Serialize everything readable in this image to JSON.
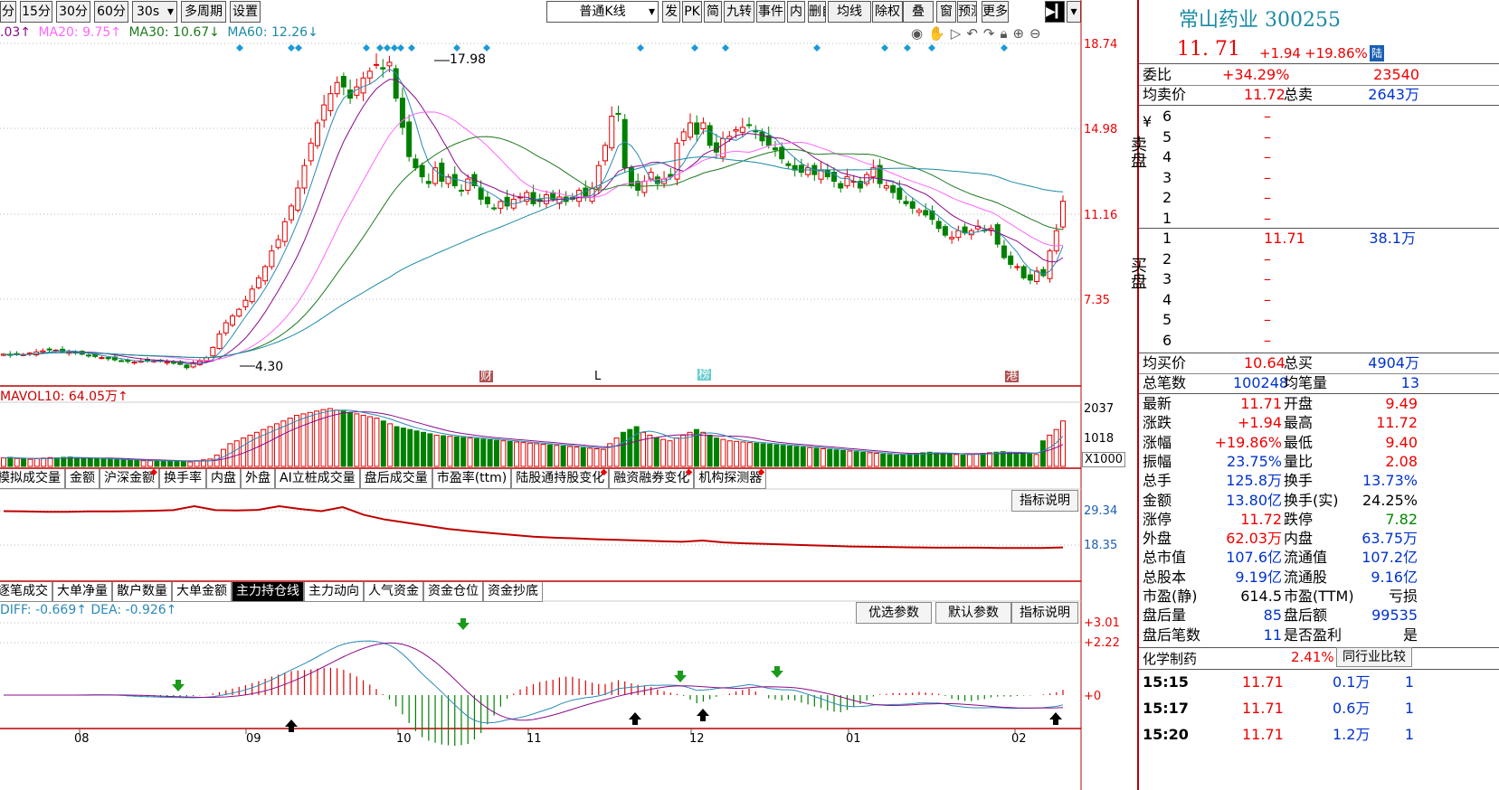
{
  "colors": {
    "up": "#e00000",
    "down": "#008000",
    "ma5": "#2a8ab8",
    "ma10": "#8b0a8b",
    "ma20": "#ff66ff",
    "ma30": "#1f7a1f",
    "ma60": "#1a8aa5",
    "line_red": "#c00000"
  },
  "toolbar": {
    "buttons": [
      "分",
      "15分",
      "30分",
      "60分",
      "30s",
      "多周期",
      "设置"
    ],
    "kline_select": "普通K线",
    "right_buttons": [
      "发",
      "PK",
      "简",
      "九转",
      "事件",
      "内",
      "删自选",
      "均线",
      "除权",
      "叠",
      "窗",
      "预测",
      "更多"
    ]
  },
  "ma_legend": {
    "ma10": ".03↑",
    "ma20": "MA20: 9.75↑",
    "ma30": "MA30: 10.67↓",
    "ma60": "MA60: 12.26↓"
  },
  "chart_tools": [
    "eye-icon",
    "hand-icon",
    "play-icon",
    "undo-icon",
    "redo-icon",
    "lock-icon",
    "zoom-in-icon",
    "zoom-out-icon"
  ],
  "chart_data": [
    {
      "type": "candlestick",
      "title": "",
      "price_axis": [
        "18.74",
        "14.98",
        "11.16",
        "7.35"
      ],
      "high_label": "17.98",
      "low_label": "4.30",
      "event_markers": [
        "财",
        "L",
        "榜",
        "港"
      ],
      "x_labels": [
        "08",
        "09",
        "10",
        "11",
        "12",
        "01",
        "02"
      ],
      "closes": [
        4.9,
        4.85,
        4.9,
        4.88,
        4.95,
        5,
        5.05,
        5.1,
        5.08,
        5.02,
        5.0,
        4.95,
        4.9,
        4.85,
        4.8,
        4.75,
        4.7,
        4.65,
        4.6,
        4.58,
        4.55,
        4.6,
        4.62,
        4.6,
        4.58,
        4.55,
        4.5,
        4.45,
        4.3,
        4.5,
        4.6,
        4.75,
        5.2,
        5.8,
        6.3,
        6.6,
        6.9,
        7.3,
        7.8,
        8.3,
        8.8,
        9.5,
        10,
        10.8,
        11.5,
        12.3,
        13.3,
        14.3,
        15.2,
        16,
        16.5,
        17,
        16.8,
        16.3,
        16.8,
        17.2,
        17.5,
        17.8,
        17.6,
        17.9,
        16.3,
        15,
        13.7,
        13.2,
        12.8,
        12.5,
        13.2,
        12.6,
        12.8,
        12.4,
        12.2,
        12.7,
        12.4,
        11.8,
        11.6,
        11.4,
        11.7,
        11.5,
        11.8,
        11.9,
        12.1,
        11.6,
        11.7,
        12,
        11.8,
        11.9,
        11.7,
        11.8,
        12.2,
        11.9,
        12.3,
        13.3,
        14.2,
        15.5,
        15.6,
        13.2,
        12.4,
        12.2,
        12.6,
        13,
        12.5,
        12.7,
        12.8,
        14.3,
        14.8,
        15.2,
        14.7,
        15.2,
        14.2,
        13.9,
        14.5,
        14.6,
        14.9,
        15,
        15.1,
        14.8,
        14.4,
        14.2,
        14,
        13.6,
        13.3,
        13.1,
        13,
        13.2,
        12.9,
        13.1,
        12.8,
        12.6,
        12.3,
        12.8,
        12.6,
        12.3,
        12.9,
        13.2,
        12.5,
        12.4,
        12.1,
        11.8,
        11.6,
        11.4,
        11.3,
        11.1,
        10.9,
        10.5,
        10.2,
        10.1,
        10.4,
        10.3,
        10.4,
        10.6,
        10.4,
        10.5,
        9.8,
        9.2,
        8.9,
        8.8,
        8.3,
        8.2,
        8.6,
        8.4,
        9.5,
        10.4,
        11.71
      ]
    },
    {
      "type": "bar",
      "title": "MAVOL10: 64.05万↑",
      "axis": [
        "2037",
        "1018",
        "X1000"
      ],
      "values": [
        300,
        320,
        280,
        260,
        250,
        270,
        290,
        310,
        300,
        320,
        330,
        310,
        290,
        280,
        270,
        260,
        250,
        240,
        230,
        220,
        210,
        200,
        200,
        210,
        200,
        190,
        180,
        170,
        160,
        200,
        230,
        260,
        400,
        600,
        800,
        900,
        1000,
        1100,
        1200,
        1300,
        1400,
        1500,
        1600,
        1700,
        1800,
        1850,
        1900,
        1950,
        2000,
        2037,
        1980,
        1950,
        1900,
        1850,
        1800,
        1750,
        1700,
        1600,
        1500,
        1400,
        1350,
        1300,
        1250,
        1200,
        1150,
        1100,
        1080,
        1060,
        1040,
        1020,
        1000,
        980,
        960,
        940,
        920,
        900,
        880,
        860,
        840,
        820,
        800,
        780,
        760,
        740,
        720,
        700,
        680,
        660,
        640,
        620,
        600,
        800,
        1000,
        1200,
        1300,
        1400,
        1200,
        1100,
        1000,
        950,
        900,
        1000,
        1100,
        1200,
        1300,
        1200,
        1100,
        1000,
        950,
        900,
        880,
        860,
        840,
        820,
        800,
        780,
        760,
        740,
        720,
        700,
        680,
        660,
        640,
        620,
        600,
        580,
        560,
        540,
        520,
        500,
        480,
        460,
        440,
        420,
        400,
        420,
        440,
        460,
        480,
        500,
        480,
        460,
        440,
        420,
        400,
        420,
        440,
        460,
        480,
        500,
        520,
        500,
        480,
        460,
        440,
        420,
        900,
        1100,
        1300,
        1600
      ]
    },
    {
      "type": "line",
      "title": "",
      "axis": [
        "29.34",
        "18.35"
      ],
      "values": [
        29.2,
        29.1,
        29.0,
        29.0,
        29.1,
        29.1,
        29.2,
        29.3,
        29.5,
        30.8,
        29.5,
        29.4,
        29.6,
        30.8,
        29.9,
        29.2,
        30.5,
        28.0,
        26.5,
        25.5,
        24.5,
        23.5,
        22.8,
        22.2,
        21.6,
        21.0,
        20.7,
        20.5,
        20.2,
        20.0,
        19.8,
        19.6,
        19.4,
        19.8,
        19.2,
        18.9,
        18.7,
        18.5,
        18.3,
        18.1,
        17.9,
        17.8,
        17.7,
        17.6,
        17.5,
        17.5,
        17.5,
        17.4,
        17.4,
        17.4,
        17.6
      ]
    },
    {
      "type": "line",
      "title": "DIFF: -0.669↑ DEA: -0.926↑",
      "axis": [
        "+3.01",
        "+2.22",
        "+0"
      ]
    }
  ],
  "indicator_tabs": [
    "模拟成交量",
    "金额",
    "沪深金额",
    "换手率",
    "内盘",
    "外盘",
    "AI立桩成交量",
    "盘后成交量",
    "市盈率(ttm)",
    "陆股通持股变化",
    "融资融券变化",
    "机构探测器"
  ],
  "fund_tabs": [
    "逐笔成交",
    "大单净量",
    "散户数量",
    "大单金额",
    "主力持仓线",
    "主力动向",
    "人气资金",
    "资金仓位",
    "资金抄底"
  ],
  "buttons": {
    "explain": "指标说明",
    "opt": "优选参数",
    "def": "默认参数"
  },
  "quote": {
    "name": "常山药业 300255",
    "price": "11. 71",
    "change": "+1.94",
    "pct": "+19.86%",
    "badge": "陆",
    "webi": [
      "委比",
      "+34.29%",
      "23540"
    ],
    "avg_sell": [
      "均卖价",
      "11.72",
      "总卖",
      "2643万"
    ],
    "ask_side": "卖盘",
    "bid_side": "买盘",
    "asks": [
      [
        "6",
        "–",
        ""
      ],
      [
        "5",
        "–",
        ""
      ],
      [
        "4",
        "–",
        ""
      ],
      [
        "3",
        "–",
        ""
      ],
      [
        "2",
        "–",
        ""
      ],
      [
        "1",
        "–",
        ""
      ]
    ],
    "bids": [
      [
        "1",
        "11.71",
        "38.1万"
      ],
      [
        "2",
        "–",
        ""
      ],
      [
        "3",
        "–",
        ""
      ],
      [
        "4",
        "–",
        ""
      ],
      [
        "5",
        "–",
        ""
      ],
      [
        "6",
        "–",
        ""
      ]
    ],
    "avg_buy": [
      "均买价",
      "10.64",
      "总买",
      "4904万"
    ],
    "total_deals": [
      "总笔数",
      "100248",
      "均笔量",
      "13"
    ],
    "stats": [
      [
        "最新",
        "11.71",
        "开盘",
        "9.49"
      ],
      [
        "涨跌",
        "+1.94",
        "最高",
        "11.72"
      ],
      [
        "涨幅",
        "+19.86%",
        "最低",
        "9.40"
      ],
      [
        "振幅",
        "23.75%",
        "量比",
        "2.08"
      ],
      [
        "总手",
        "125.8万",
        "换手",
        "13.73%"
      ],
      [
        "金额",
        "13.80亿",
        "换手(实)",
        "24.25%"
      ],
      [
        "涨停",
        "11.72",
        "跌停",
        "7.82"
      ],
      [
        "外盘",
        "62.03万",
        "内盘",
        "63.75万"
      ],
      [
        "总市值",
        "107.6亿",
        "流通值",
        "107.2亿"
      ],
      [
        "总股本",
        "9.19亿",
        "流通股",
        "9.16亿"
      ],
      [
        "市盈(静)",
        "614.5",
        "市盈(TTM)",
        "亏损"
      ],
      [
        "盘后量",
        "85",
        "盘后额",
        "99535"
      ],
      [
        "盘后笔数",
        "11",
        "是否盈利",
        "是"
      ]
    ],
    "sector": [
      "化学制药",
      "2.41%",
      "同行业比较"
    ],
    "ticks": [
      [
        "15:15",
        "11.71",
        "0.1万",
        "1"
      ],
      [
        "15:17",
        "11.71",
        "0.6万",
        "1"
      ],
      [
        "15:20",
        "11.71",
        "1.2万",
        "1"
      ]
    ]
  }
}
